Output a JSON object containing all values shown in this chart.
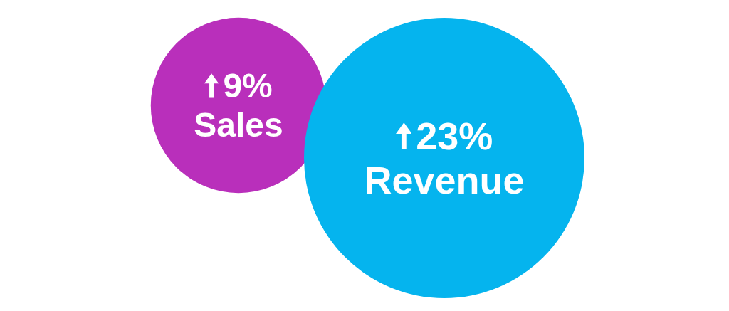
{
  "chart_data": {
    "type": "other",
    "categories": [
      "Sales",
      "Revenue"
    ],
    "values": [
      9,
      23
    ],
    "value_labels": [
      "9%",
      "23%"
    ],
    "colors": [
      "#b92fbb",
      "#05b4ee"
    ]
  }
}
